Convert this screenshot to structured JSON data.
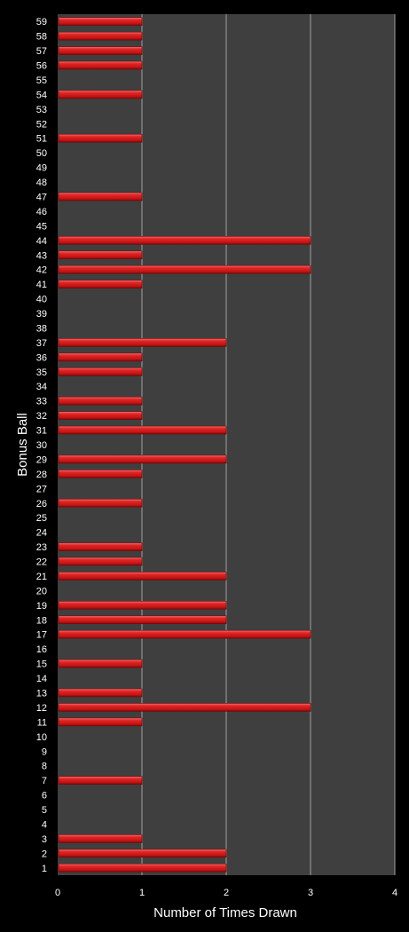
{
  "chart_data": {
    "type": "bar",
    "orientation": "horizontal",
    "title": "",
    "xlabel": "Number of Times Drawn",
    "ylabel": "Bonus Ball",
    "xlim": [
      0,
      4
    ],
    "xticks": [
      "0",
      "1",
      "2",
      "3",
      "4"
    ],
    "grid": true,
    "legend": "none",
    "categories": [
      "1",
      "2",
      "3",
      "4",
      "5",
      "6",
      "7",
      "8",
      "9",
      "10",
      "11",
      "12",
      "13",
      "14",
      "15",
      "16",
      "17",
      "18",
      "19",
      "20",
      "21",
      "22",
      "23",
      "24",
      "25",
      "26",
      "27",
      "28",
      "29",
      "30",
      "31",
      "32",
      "33",
      "34",
      "35",
      "36",
      "37",
      "38",
      "39",
      "40",
      "41",
      "42",
      "43",
      "44",
      "45",
      "46",
      "47",
      "48",
      "49",
      "50",
      "51",
      "52",
      "53",
      "54",
      "55",
      "56",
      "57",
      "58",
      "59"
    ],
    "values": [
      2,
      2,
      1,
      0,
      0,
      0,
      1,
      0,
      0,
      0,
      1,
      3,
      1,
      0,
      1,
      0,
      3,
      2,
      2,
      0,
      2,
      1,
      1,
      0,
      0,
      1,
      0,
      1,
      2,
      0,
      2,
      1,
      1,
      0,
      1,
      1,
      2,
      0,
      0,
      0,
      1,
      3,
      1,
      3,
      0,
      0,
      1,
      0,
      0,
      0,
      1,
      0,
      0,
      1,
      0,
      1,
      1,
      1,
      1
    ],
    "colors": {
      "background": "#000000",
      "plot_area": "#3f3f3f",
      "gridline": "#a0a0a0",
      "bar": "#d31c1c",
      "bar_highlight": "#f07070",
      "bar_shadow": "#7a0808",
      "text": "#ffffff"
    }
  }
}
